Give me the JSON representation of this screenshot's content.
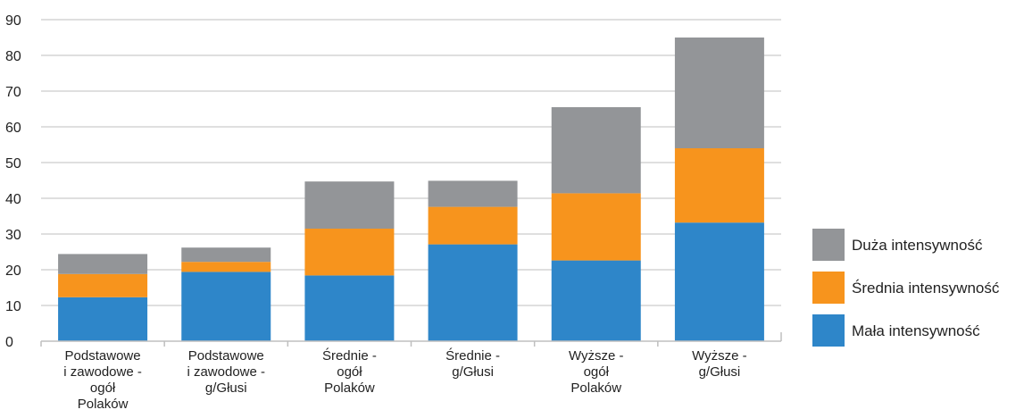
{
  "chart_data": {
    "type": "bar",
    "stacked": true,
    "title": "",
    "xlabel": "",
    "ylabel": "",
    "ylim": [
      0,
      90
    ],
    "yticks": [
      0,
      10,
      20,
      30,
      40,
      50,
      60,
      70,
      80,
      90
    ],
    "grid": true,
    "legend_position": "right",
    "categories": [
      [
        "Podstawowe",
        "i zawodowe -",
        "ogół",
        "Polaków"
      ],
      [
        "Podstawowe",
        "i zawodowe -",
        "g/Głusi"
      ],
      [
        "Średnie -",
        "ogół",
        "Polaków"
      ],
      [
        "Średnie -",
        "g/Głusi"
      ],
      [
        "Wyższe -",
        "ogół",
        "Polaków"
      ],
      [
        "Wyższe -",
        "g/Głusi"
      ]
    ],
    "series": [
      {
        "name": "Mała intensywność",
        "color": "#2E86C9",
        "values": [
          12.3,
          19.4,
          18.4,
          27.1,
          22.6,
          33.2
        ]
      },
      {
        "name": "Średnia intensywność",
        "color": "#F7941D",
        "values": [
          6.5,
          2.8,
          13.1,
          10.5,
          18.8,
          20.8
        ]
      },
      {
        "name": "Duża intensywność",
        "color": "#939598",
        "values": [
          5.6,
          4.0,
          13.2,
          7.3,
          24.1,
          31.0
        ]
      }
    ]
  },
  "legend": {
    "items": [
      {
        "label": "Duża intensywność",
        "color": "#939598"
      },
      {
        "label": "Średnia intensywność",
        "color": "#F7941D"
      },
      {
        "label": "Mała intensywność",
        "color": "#2E86C9"
      }
    ]
  }
}
